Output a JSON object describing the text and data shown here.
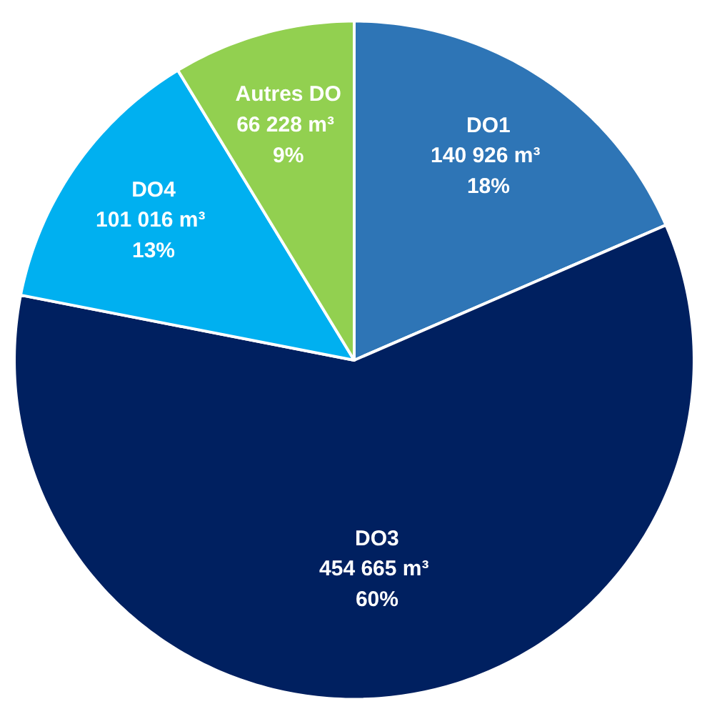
{
  "chart_data": {
    "type": "pie",
    "categories": [
      "DO1",
      "DO3",
      "DO4",
      "Autres DO"
    ],
    "values": [
      140926,
      454665,
      101016,
      66228
    ],
    "colors": [
      "#2e75b6",
      "#002060",
      "#00b0f0",
      "#92d050"
    ],
    "value_labels": [
      "140 926  m³\n18%",
      "454 665  m³\n60%",
      "101 016  m³\n13%",
      "66 228  m³\n9%"
    ],
    "legend": false
  }
}
